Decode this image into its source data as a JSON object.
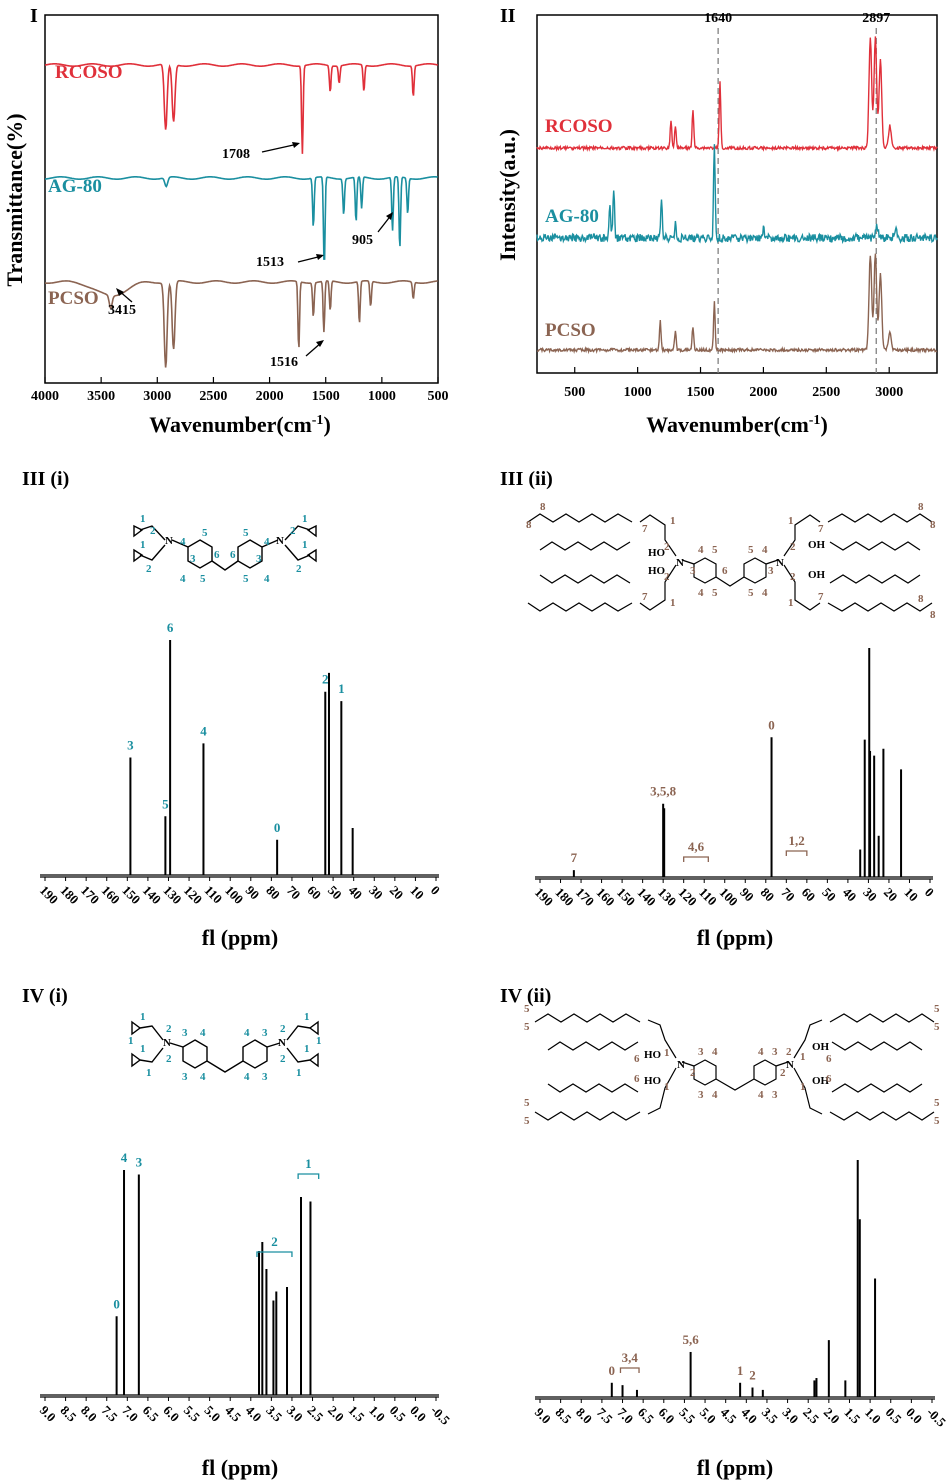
{
  "colors": {
    "red": "#e0303a",
    "teal": "#1a8fa0",
    "brown": "#8b6452",
    "black": "#000000",
    "dash": "#808080"
  },
  "panels": {
    "I": {
      "label": "I",
      "xlabel": "Wavenumber(cm",
      "xlabel_sup": "-1",
      "xlabel_end": ")",
      "ylabel": "Transmittance(%)"
    },
    "II": {
      "label": "II",
      "xlabel": "Wavenumber(cm",
      "xlabel_sup": "-1",
      "xlabel_end": ")",
      "ylabel": "Intensity(a.u.)"
    },
    "III_i": {
      "label": "III (i)",
      "xlabel": "fl (ppm)"
    },
    "III_ii": {
      "label": "III (ii)",
      "xlabel": "fl (ppm)"
    },
    "IV_i": {
      "label": "IV (i)",
      "xlabel": "fl (ppm)"
    },
    "IV_ii": {
      "label": "IV (ii)",
      "xlabel": "fl (ppm)"
    }
  },
  "chart_data": [
    {
      "panel": "I",
      "type": "line",
      "xlabel": "Wavenumber(cm-1)",
      "ylabel": "Transmittance(%)",
      "xlim": [
        4000,
        500
      ],
      "xticks": [
        "4000",
        "3500",
        "3000",
        "2500",
        "2000",
        "1500",
        "1000",
        "500"
      ],
      "series": [
        {
          "name": "RCOSO",
          "color": "red",
          "peaks": [
            [
              2925,
              0.75
            ],
            [
              2855,
              0.65
            ],
            [
              1708,
              1.0
            ],
            [
              1460,
              0.3
            ],
            [
              1380,
              0.2
            ],
            [
              1160,
              0.3
            ],
            [
              720,
              0.35
            ]
          ]
        },
        {
          "name": "AG-80",
          "color": "teal",
          "peaks": [
            [
              2920,
              0.1
            ],
            [
              1610,
              0.55
            ],
            [
              1513,
              1.0
            ],
            [
              1340,
              0.4
            ],
            [
              1230,
              0.5
            ],
            [
              1180,
              0.35
            ],
            [
              905,
              0.6
            ],
            [
              840,
              0.8
            ],
            [
              770,
              0.4
            ]
          ]
        },
        {
          "name": "PCSO",
          "color": "brown",
          "peaks": [
            [
              3415,
              0.15
            ],
            [
              2925,
              1.0
            ],
            [
              2855,
              0.8
            ],
            [
              1740,
              0.8
            ],
            [
              1610,
              0.4
            ],
            [
              1516,
              0.6
            ],
            [
              1460,
              0.35
            ],
            [
              1200,
              0.5
            ],
            [
              1100,
              0.3
            ],
            [
              720,
              0.2
            ]
          ]
        }
      ],
      "annotations": [
        "1708",
        "1513",
        "905",
        "3415",
        "1516"
      ]
    },
    {
      "panel": "II",
      "type": "line",
      "xlabel": "Wavenumber(cm-1)",
      "ylabel": "Intensity(a.u.)",
      "xlim": [
        200,
        3380
      ],
      "xticks": [
        "500",
        "1000",
        "1500",
        "2000",
        "2500",
        "3000"
      ],
      "reference_lines": [
        "1640",
        "2897"
      ],
      "series": [
        {
          "name": "RCOSO",
          "color": "red",
          "peaks": [
            [
              1265,
              0.25
            ],
            [
              1300,
              0.2
            ],
            [
              1440,
              0.35
            ],
            [
              1655,
              0.6
            ],
            [
              2850,
              1.0
            ],
            [
              2890,
              1.0
            ],
            [
              2930,
              0.8
            ],
            [
              3005,
              0.2
            ]
          ]
        },
        {
          "name": "AG-80",
          "color": "teal",
          "peaks": [
            [
              780,
              0.35
            ],
            [
              810,
              0.55
            ],
            [
              1190,
              0.4
            ],
            [
              1300,
              0.15
            ],
            [
              1610,
              1.0
            ],
            [
              2000,
              0.12
            ],
            [
              2900,
              0.15
            ],
            [
              3050,
              0.1
            ]
          ]
        },
        {
          "name": "PCSO",
          "color": "brown",
          "peaks": [
            [
              1180,
              0.3
            ],
            [
              1300,
              0.2
            ],
            [
              1440,
              0.25
            ],
            [
              1610,
              0.5
            ],
            [
              2850,
              1.0
            ],
            [
              2890,
              1.0
            ],
            [
              2930,
              0.8
            ],
            [
              3005,
              0.2
            ]
          ]
        }
      ]
    },
    {
      "panel": "III (i)",
      "type": "line",
      "xlabel": "fl (ppm)",
      "xlim": [
        190,
        0
      ],
      "xticks": [
        "190",
        "180",
        "170",
        "160",
        "150",
        "140",
        "130",
        "120",
        "110",
        "100",
        "90",
        "80",
        "70",
        "60",
        "50",
        "40",
        "30",
        "20",
        "10",
        "0"
      ],
      "peaks": [
        [
          148.5,
          0.5,
          "3"
        ],
        [
          131.5,
          0.25,
          "5"
        ],
        [
          129.2,
          1.0,
          "6"
        ],
        [
          113.0,
          0.56,
          "4"
        ],
        [
          77.2,
          0.15,
          "0"
        ],
        [
          53.8,
          0.78,
          "2"
        ],
        [
          52.0,
          0.86,
          ""
        ],
        [
          46.0,
          0.74,
          "1"
        ],
        [
          40.5,
          0.2,
          ""
        ]
      ]
    },
    {
      "panel": "III (ii)",
      "type": "line",
      "xlabel": "fl (ppm)",
      "xlim": [
        190,
        0
      ],
      "xticks": [
        "190",
        "180",
        "170",
        "160",
        "150",
        "140",
        "130",
        "120",
        "110",
        "100",
        "90",
        "80",
        "70",
        "60",
        "50",
        "40",
        "30",
        "20",
        "10",
        "0"
      ],
      "peaks": [
        [
          173.5,
          0.03,
          "7"
        ],
        [
          130.0,
          0.32,
          "3,5,8"
        ],
        [
          129.5,
          0.3,
          ""
        ],
        [
          77.2,
          0.61,
          "0"
        ],
        [
          34.0,
          0.12,
          ""
        ],
        [
          31.8,
          0.6,
          ""
        ],
        [
          29.6,
          1.0,
          ""
        ],
        [
          29.2,
          0.55,
          ""
        ],
        [
          27.2,
          0.53,
          ""
        ],
        [
          25.0,
          0.18,
          ""
        ],
        [
          22.7,
          0.56,
          ""
        ],
        [
          14.1,
          0.47,
          ""
        ]
      ],
      "brackets": [
        "4,6",
        "1,2"
      ]
    },
    {
      "panel": "IV (i)",
      "type": "line",
      "xlabel": "fl (ppm)",
      "xlim": [
        9.0,
        -0.5
      ],
      "xticks": [
        "9.0",
        "8.5",
        "8.0",
        "7.5",
        "7.0",
        "6.5",
        "6.0",
        "5.5",
        "5.0",
        "4.5",
        "4.0",
        "3.5",
        "3.0",
        "2.5",
        "2.0",
        "1.5",
        "1.0",
        "0.5",
        "0.0",
        "-0.5"
      ],
      "peaks": [
        [
          7.26,
          0.35,
          "0"
        ],
        [
          7.08,
          1.0,
          "4"
        ],
        [
          6.72,
          0.98,
          "3"
        ],
        [
          3.8,
          0.64,
          ""
        ],
        [
          3.72,
          0.68,
          ""
        ],
        [
          3.62,
          0.56,
          ""
        ],
        [
          3.45,
          0.42,
          ""
        ],
        [
          3.38,
          0.46,
          ""
        ],
        [
          3.12,
          0.48,
          ""
        ],
        [
          2.78,
          0.88,
          ""
        ],
        [
          2.55,
          0.86,
          ""
        ]
      ],
      "brackets": [
        "2",
        "1"
      ]
    },
    {
      "panel": "IV (ii)",
      "type": "line",
      "xlabel": "fl (ppm)",
      "xlim": [
        9.0,
        -0.5
      ],
      "xticks": [
        "9.0",
        "8.5",
        "8.0",
        "7.5",
        "7.0",
        "6.5",
        "6.0",
        "5.5",
        "5.0",
        "4.5",
        "4.0",
        "3.5",
        "3.0",
        "2.5",
        "2.0",
        "1.5",
        "1.0",
        "0.5",
        "0.0",
        "-0.5"
      ],
      "peaks": [
        [
          7.26,
          0.06,
          "0"
        ],
        [
          7.0,
          0.05,
          ""
        ],
        [
          6.65,
          0.03,
          ""
        ],
        [
          5.35,
          0.19,
          "5,6"
        ],
        [
          4.15,
          0.06,
          "1"
        ],
        [
          3.85,
          0.04,
          "2"
        ],
        [
          3.6,
          0.03,
          ""
        ],
        [
          2.35,
          0.07,
          ""
        ],
        [
          2.3,
          0.08,
          ""
        ],
        [
          2.0,
          0.24,
          ""
        ],
        [
          1.6,
          0.07,
          ""
        ],
        [
          1.3,
          1.0,
          ""
        ],
        [
          1.25,
          0.75,
          ""
        ],
        [
          0.88,
          0.5,
          ""
        ]
      ],
      "brackets": [
        "3,4"
      ]
    }
  ],
  "structures": {
    "III_i_nums": [
      "1",
      "2",
      "1",
      "2",
      "4",
      "5",
      "6",
      "6",
      "5",
      "4",
      "1",
      "2",
      "1",
      "2",
      "3",
      "3",
      "4",
      "5",
      "5",
      "4",
      "N",
      "N"
    ],
    "III_ii_nums": [
      "7",
      "1",
      "4",
      "5",
      "6",
      "5",
      "4",
      "1",
      "7",
      "8",
      "8",
      "2",
      "3",
      "3",
      "2",
      "8",
      "8",
      "7",
      "1",
      "4",
      "5",
      "5",
      "4",
      "1",
      "7",
      "8",
      "8",
      "2",
      "2",
      "HO",
      "OH",
      "HO",
      "OH",
      "N",
      "N"
    ],
    "IV_i_nums": [
      "1",
      "2",
      "3",
      "4",
      "4",
      "3",
      "2",
      "1",
      "1",
      "2",
      "3",
      "4",
      "4",
      "3",
      "2",
      "1",
      "1",
      "1",
      "1",
      "1",
      "N",
      "N"
    ],
    "IV_ii_nums": [
      "5",
      "5",
      "6",
      "1",
      "3",
      "4",
      "4",
      "3",
      "2",
      "1",
      "6",
      "5",
      "5",
      "5",
      "5",
      "6",
      "1",
      "3",
      "4",
      "4",
      "3",
      "1",
      "6",
      "5",
      "5",
      "2",
      "2",
      "HO",
      "OH",
      "HO",
      "OH",
      "N",
      "N"
    ]
  }
}
